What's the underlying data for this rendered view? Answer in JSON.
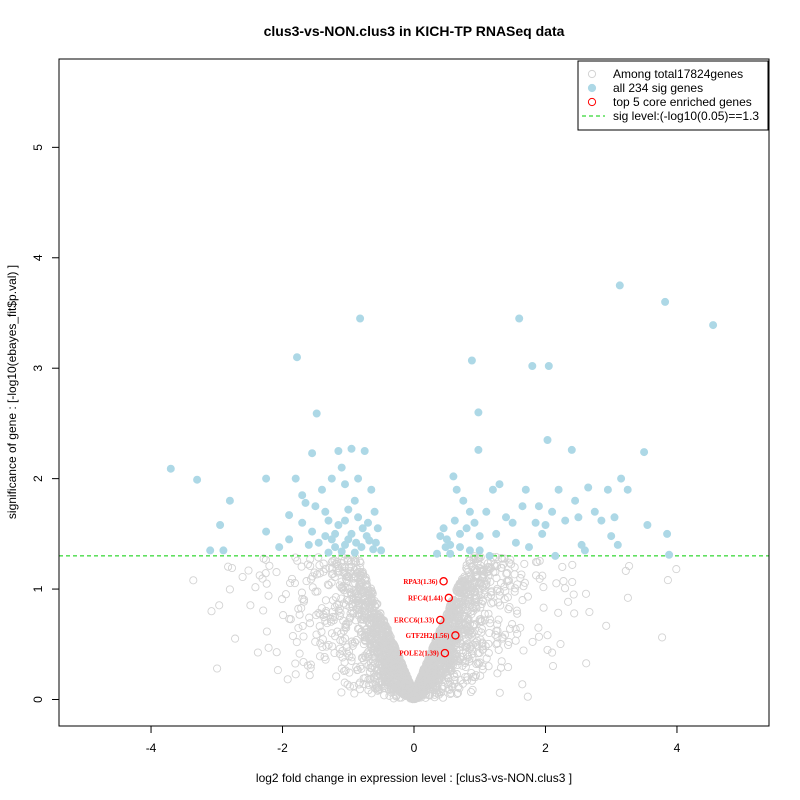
{
  "chart_data": {
    "type": "scatter",
    "title": "clus3-vs-NON.clus3 in KICH-TP RNASeq data",
    "xlabel": "log2 fold change in expression level : [clus3-vs-NON.clus3 ]",
    "ylabel": "significance of gene : [-log10(ebayes_fit$p.val) ]",
    "xlim": [
      -5.4,
      5.4
    ],
    "ylim": [
      -0.24,
      5.8
    ],
    "x_ticks": [
      -4,
      -2,
      0,
      2,
      4
    ],
    "y_ticks": [
      0,
      1,
      2,
      3,
      4,
      5
    ],
    "sig_level": 1.3,
    "colors": {
      "background": "#d3d3d3",
      "sig": "#add8e6",
      "core": "#ff0000",
      "threshold": "#00cd00"
    },
    "legend": {
      "position": "top-right",
      "items": [
        {
          "label": "Among total17824genes",
          "symbol": "open-circle-gray"
        },
        {
          "label": "all 234 sig genes",
          "symbol": "filled-circle-lightblue"
        },
        {
          "label": "top 5 core enriched genes",
          "symbol": "open-circle-red"
        },
        {
          "label": "sig level:(-log10(0.05)==1.3",
          "symbol": "dashed-line-green"
        }
      ]
    },
    "sig_genes": [
      [
        -3.7,
        2.09
      ],
      [
        -3.3,
        1.99
      ],
      [
        -2.8,
        1.8
      ],
      [
        -2.95,
        1.58
      ],
      [
        -3.1,
        1.35
      ],
      [
        -2.9,
        1.35
      ],
      [
        -2.25,
        2.0
      ],
      [
        -2.25,
        1.52
      ],
      [
        -1.9,
        1.67
      ],
      [
        -1.9,
        1.45
      ],
      [
        -1.8,
        2.0
      ],
      [
        -1.78,
        3.1
      ],
      [
        -1.7,
        1.85
      ],
      [
        -1.65,
        1.78
      ],
      [
        -1.55,
        2.23
      ],
      [
        -1.5,
        1.75
      ],
      [
        -1.48,
        2.59
      ],
      [
        -1.4,
        1.9
      ],
      [
        -1.35,
        1.7
      ],
      [
        -1.3,
        1.62
      ],
      [
        -1.25,
        2.0
      ],
      [
        -1.2,
        1.5
      ],
      [
        -1.15,
        2.25
      ],
      [
        -1.1,
        2.1
      ],
      [
        -1.05,
        1.95
      ],
      [
        -1.0,
        1.45
      ],
      [
        -0.95,
        2.27
      ],
      [
        -0.9,
        1.8
      ],
      [
        -0.85,
        2.0
      ],
      [
        -0.82,
        3.45
      ],
      [
        -0.75,
        2.25
      ],
      [
        -0.7,
        1.6
      ],
      [
        -0.65,
        1.9
      ],
      [
        -0.6,
        1.7
      ],
      [
        -0.55,
        1.55
      ],
      [
        -0.5,
        1.35
      ],
      [
        -1.6,
        1.4
      ],
      [
        -1.45,
        1.42
      ],
      [
        -1.2,
        1.38
      ],
      [
        -1.05,
        1.4
      ],
      [
        -0.95,
        1.5
      ],
      [
        -0.88,
        1.42
      ],
      [
        -0.8,
        1.38
      ],
      [
        -0.72,
        1.48
      ],
      [
        -0.62,
        1.36
      ],
      [
        -1.3,
        1.33
      ],
      [
        -1.1,
        1.34
      ],
      [
        -0.9,
        1.33
      ],
      [
        -1.7,
        1.6
      ],
      [
        -1.0,
        1.72
      ],
      [
        -1.15,
        1.58
      ],
      [
        -0.85,
        1.65
      ],
      [
        -1.25,
        1.45
      ],
      [
        -0.78,
        1.55
      ],
      [
        0.35,
        1.32
      ],
      [
        0.45,
        1.55
      ],
      [
        0.5,
        1.45
      ],
      [
        0.55,
        1.4
      ],
      [
        0.6,
        2.02
      ],
      [
        0.65,
        1.9
      ],
      [
        0.7,
        1.5
      ],
      [
        0.75,
        1.8
      ],
      [
        0.8,
        1.55
      ],
      [
        0.85,
        1.35
      ],
      [
        0.88,
        3.07
      ],
      [
        0.92,
        1.6
      ],
      [
        0.98,
        2.6
      ],
      [
        1.0,
        1.48
      ],
      [
        1.1,
        1.7
      ],
      [
        1.15,
        1.3
      ],
      [
        1.2,
        1.9
      ],
      [
        1.3,
        1.95
      ],
      [
        1.4,
        1.65
      ],
      [
        1.5,
        1.6
      ],
      [
        1.6,
        3.45
      ],
      [
        1.65,
        1.75
      ],
      [
        1.7,
        1.9
      ],
      [
        1.8,
        3.02
      ],
      [
        1.85,
        1.6
      ],
      [
        1.9,
        1.75
      ],
      [
        1.95,
        1.5
      ],
      [
        2.0,
        1.58
      ],
      [
        2.05,
        3.02
      ],
      [
        2.1,
        1.7
      ],
      [
        2.2,
        1.9
      ],
      [
        2.3,
        1.62
      ],
      [
        2.4,
        2.26
      ],
      [
        2.45,
        1.8
      ],
      [
        2.5,
        1.65
      ],
      [
        2.55,
        1.4
      ],
      [
        2.65,
        1.92
      ],
      [
        2.75,
        1.7
      ],
      [
        2.85,
        1.62
      ],
      [
        2.95,
        1.9
      ],
      [
        3.0,
        1.48
      ],
      [
        3.05,
        1.65
      ],
      [
        3.1,
        1.4
      ],
      [
        3.13,
        3.75
      ],
      [
        3.15,
        2.0
      ],
      [
        3.5,
        2.24
      ],
      [
        3.55,
        1.58
      ],
      [
        3.82,
        3.6
      ],
      [
        3.85,
        1.5
      ],
      [
        4.55,
        3.39
      ],
      [
        0.98,
        2.26
      ],
      [
        2.03,
        2.35
      ],
      [
        1.55,
        1.42
      ],
      [
        0.4,
        1.48
      ],
      [
        0.55,
        1.32
      ],
      [
        0.7,
        1.38
      ],
      [
        1.0,
        1.35
      ],
      [
        1.25,
        1.5
      ],
      [
        0.62,
        1.62
      ],
      [
        0.85,
        1.7
      ],
      [
        3.88,
        1.31
      ],
      [
        2.6,
        1.35
      ],
      [
        1.75,
        1.38
      ],
      [
        2.15,
        1.3
      ],
      [
        3.25,
        1.9
      ],
      [
        0.48,
        1.38
      ],
      [
        -2.05,
        1.38
      ],
      [
        -1.55,
        1.52
      ],
      [
        -1.05,
        1.62
      ],
      [
        -0.68,
        1.44
      ],
      [
        -1.35,
        1.48
      ],
      [
        -0.58,
        1.42
      ]
    ],
    "core_genes": [
      {
        "name": "RPA3(1.36)",
        "x": 0.45,
        "y": 1.07
      },
      {
        "name": "RFC4(1.44)",
        "x": 0.53,
        "y": 0.92
      },
      {
        "name": "ERCC6(1.33)",
        "x": 0.4,
        "y": 0.72
      },
      {
        "name": "GTF2H2(1.56)",
        "x": 0.63,
        "y": 0.58
      },
      {
        "name": "POLE2(1.39)",
        "x": 0.47,
        "y": 0.42
      }
    ]
  }
}
